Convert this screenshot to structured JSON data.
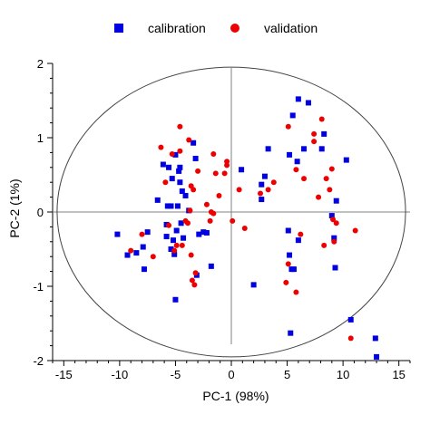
{
  "chart_data": {
    "type": "scatter",
    "title": "",
    "xlabel": "PC-1 (98%)",
    "ylabel": "PC-2 (1%)",
    "xlim": [
      -16,
      16
    ],
    "ylim": [
      -2,
      2
    ],
    "xticks": [
      -15,
      -10,
      -5,
      0,
      5,
      10,
      15
    ],
    "yticks": [
      -2,
      -1,
      0,
      1,
      2
    ],
    "grid": false,
    "legend_position": "top",
    "confidence_ellipse": {
      "cx": 0,
      "cy": 0,
      "rx": 15.6,
      "ry": 1.95
    },
    "series": [
      {
        "name": "calibration",
        "marker": "square",
        "color": "#0000e0",
        "points": [
          [
            -10.2,
            -0.3
          ],
          [
            -9.3,
            -0.58
          ],
          [
            -8.5,
            -0.55
          ],
          [
            -7.9,
            -0.47
          ],
          [
            -7.8,
            -0.77
          ],
          [
            -7.5,
            -0.27
          ],
          [
            -6.6,
            0.16
          ],
          [
            -6.1,
            0.64
          ],
          [
            -5.8,
            -0.17
          ],
          [
            -5.8,
            -0.33
          ],
          [
            -5.7,
            0.08
          ],
          [
            -5.6,
            0.6
          ],
          [
            -5.4,
            0.08
          ],
          [
            -5.4,
            -0.5
          ],
          [
            -5.3,
            0.45
          ],
          [
            -5.2,
            -0.38
          ],
          [
            -5.1,
            -0.57
          ],
          [
            -5.0,
            0.77
          ],
          [
            -5.0,
            -1.18
          ],
          [
            -4.9,
            -0.25
          ],
          [
            -4.8,
            0.08
          ],
          [
            -4.7,
            0.55
          ],
          [
            -4.6,
            0.4
          ],
          [
            -4.6,
            0.6
          ],
          [
            -4.5,
            -0.15
          ],
          [
            -4.4,
            0.28
          ],
          [
            -4.3,
            -0.35
          ],
          [
            -4.1,
            0.22
          ],
          [
            -3.8,
            0.02
          ],
          [
            -3.4,
            0.93
          ],
          [
            -3.2,
            0.72
          ],
          [
            -3.1,
            -0.85
          ],
          [
            -2.9,
            -0.3
          ],
          [
            -2.5,
            -0.27
          ],
          [
            -2.2,
            -0.28
          ],
          [
            -1.8,
            -0.73
          ],
          [
            0.9,
            0.57
          ],
          [
            2.0,
            -0.98
          ],
          [
            2.7,
            0.17
          ],
          [
            2.7,
            0.37
          ],
          [
            3.0,
            0.48
          ],
          [
            3.3,
            0.85
          ],
          [
            5.2,
            0.77
          ],
          [
            5.5,
            1.3
          ],
          [
            6.0,
            1.52
          ],
          [
            6.5,
            0.85
          ],
          [
            6.9,
            1.47
          ],
          [
            5.9,
            0.68
          ],
          [
            5.1,
            -0.25
          ],
          [
            5.2,
            -0.58
          ],
          [
            5.4,
            -0.77
          ],
          [
            5.6,
            -0.77
          ],
          [
            6.0,
            -0.38
          ],
          [
            8.1,
            0.85
          ],
          [
            8.3,
            1.05
          ],
          [
            9.0,
            -0.05
          ],
          [
            9.2,
            -0.35
          ],
          [
            9.4,
            0.15
          ],
          [
            9.3,
            -0.75
          ],
          [
            10.3,
            0.7
          ],
          [
            10.7,
            -1.45
          ],
          [
            12.9,
            -1.7
          ],
          [
            13.0,
            -1.95
          ],
          [
            5.3,
            -1.63
          ]
        ]
      },
      {
        "name": "validation",
        "marker": "circle",
        "color": "#ee0000",
        "points": [
          [
            -9.0,
            -0.52
          ],
          [
            -8.0,
            -0.3
          ],
          [
            -7.0,
            -0.6
          ],
          [
            -6.3,
            0.87
          ],
          [
            -5.3,
            0.78
          ],
          [
            -5.9,
            0.4
          ],
          [
            -5.6,
            -0.18
          ],
          [
            -5.1,
            -0.52
          ],
          [
            -4.9,
            -0.45
          ],
          [
            -4.6,
            0.82
          ],
          [
            -4.4,
            -0.45
          ],
          [
            -3.9,
            -0.15
          ],
          [
            -3.6,
            -0.58
          ],
          [
            -4.6,
            1.15
          ],
          [
            -3.8,
            0.97
          ],
          [
            -3.6,
            0.35
          ],
          [
            -3.4,
            0.3
          ],
          [
            -3.5,
            -0.92
          ],
          [
            -3.3,
            -0.98
          ],
          [
            -3.2,
            -0.82
          ],
          [
            -3.0,
            0.55
          ],
          [
            -4.1,
            -0.12
          ],
          [
            -3.7,
            0.02
          ],
          [
            -2.2,
            0.1
          ],
          [
            -1.8,
            0.0
          ],
          [
            -1.6,
            -0.02
          ],
          [
            -1.9,
            -0.12
          ],
          [
            -1.6,
            0.78
          ],
          [
            -1.4,
            0.52
          ],
          [
            -1.1,
            0.22
          ],
          [
            -0.6,
            0.52
          ],
          [
            -0.4,
            0.68
          ],
          [
            -0.4,
            0.63
          ],
          [
            0.1,
            -0.12
          ],
          [
            0.7,
            0.3
          ],
          [
            1.2,
            -0.22
          ],
          [
            2.6,
            0.25
          ],
          [
            3.3,
            0.3
          ],
          [
            3.8,
            0.4
          ],
          [
            5.1,
            -0.7
          ],
          [
            5.1,
            1.15
          ],
          [
            5.8,
            -1.08
          ],
          [
            5.8,
            0.57
          ],
          [
            6.5,
            0.45
          ],
          [
            7.4,
            0.95
          ],
          [
            7.4,
            1.05
          ],
          [
            7.8,
            0.2
          ],
          [
            8.1,
            1.25
          ],
          [
            8.3,
            -0.45
          ],
          [
            8.5,
            0.45
          ],
          [
            8.8,
            0.3
          ],
          [
            9.0,
            0.58
          ],
          [
            9.4,
            -0.15
          ],
          [
            9.2,
            -0.4
          ],
          [
            9.1,
            -0.1
          ],
          [
            10.7,
            -1.7
          ],
          [
            11.1,
            -0.25
          ],
          [
            6.2,
            -0.3
          ],
          [
            4.9,
            -0.95
          ]
        ]
      }
    ]
  }
}
